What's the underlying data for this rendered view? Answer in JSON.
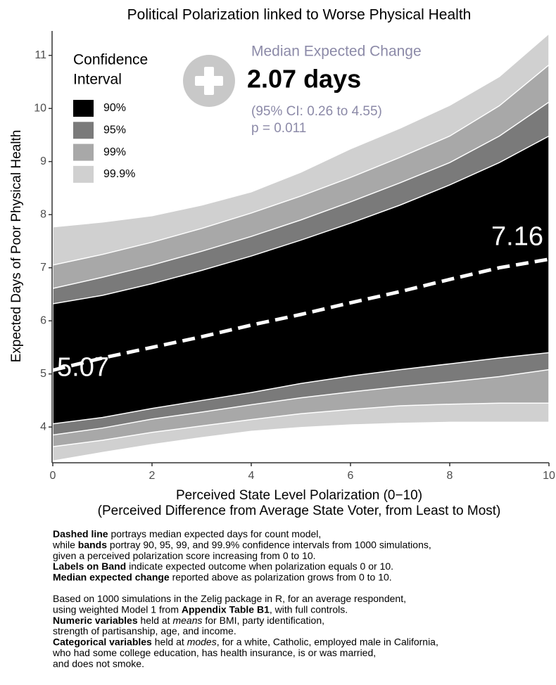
{
  "chart_data": {
    "type": "band",
    "title": "Political Polarization linked to Worse Physical Health",
    "x_label": "Perceived State Level Polarization (0−10)",
    "x_sublabel": "(Perceived Difference from Average State Voter, from Least to Most)",
    "y_label": "Expected Days of Poor Physical Health",
    "x": [
      0,
      1,
      2,
      3,
      4,
      5,
      6,
      7,
      8,
      9,
      10
    ],
    "xlim": [
      0,
      10
    ],
    "xticks": [
      0,
      2,
      4,
      6,
      8,
      10
    ],
    "ylim": [
      3.34,
      11.46
    ],
    "yticks": [
      4,
      5,
      6,
      7,
      8,
      9,
      10,
      11
    ],
    "legend_title": [
      "Confidence",
      "Interval"
    ],
    "legend_position": "upper left",
    "bands": [
      {
        "name": "99.9%",
        "color": "#d0d0d0",
        "upper": [
          7.77,
          7.86,
          7.98,
          8.18,
          8.43,
          8.8,
          9.24,
          9.63,
          10.06,
          10.6,
          11.41
        ],
        "lower": [
          3.36,
          3.52,
          3.67,
          3.8,
          3.92,
          3.99,
          4.04,
          4.07,
          4.09,
          4.09,
          4.09
        ]
      },
      {
        "name": "99%",
        "color": "#a8a8a8",
        "upper": [
          7.05,
          7.25,
          7.48,
          7.74,
          8.03,
          8.35,
          8.7,
          9.08,
          9.48,
          10.05,
          10.82
        ],
        "lower": [
          3.63,
          3.75,
          3.9,
          4.02,
          4.14,
          4.25,
          4.33,
          4.4,
          4.43,
          4.45,
          4.45
        ]
      },
      {
        "name": "95%",
        "color": "#7a7a7a",
        "upper": [
          6.61,
          6.82,
          7.05,
          7.31,
          7.59,
          7.9,
          8.24,
          8.6,
          8.98,
          9.48,
          10.12
        ],
        "lower": [
          3.85,
          3.98,
          4.15,
          4.28,
          4.42,
          4.55,
          4.66,
          4.76,
          4.85,
          4.95,
          5.08
        ]
      },
      {
        "name": "90%",
        "color": "#000000",
        "upper": [
          6.32,
          6.48,
          6.7,
          6.95,
          7.22,
          7.52,
          7.84,
          8.18,
          8.56,
          8.98,
          9.48
        ],
        "lower": [
          4.06,
          4.18,
          4.35,
          4.5,
          4.65,
          4.82,
          4.96,
          5.08,
          5.19,
          5.3,
          5.4
        ]
      }
    ],
    "median": {
      "color": "#ffffff",
      "values": [
        5.07,
        5.3,
        5.5,
        5.7,
        5.92,
        6.12,
        6.34,
        6.55,
        6.78,
        7.0,
        7.16
      ]
    },
    "annotations": {
      "heading": "Median Expected Change",
      "change": "2.07 days",
      "ci": "(95% CI: 0.26 to 4.55)",
      "p": "p = 0.011"
    },
    "notes": [
      [
        [
          {
            "text": "Dashed line",
            "style": "bold"
          },
          " portrays median expected days for count model,"
        ],
        [
          "while ",
          {
            "text": "bands",
            "style": "bold"
          },
          " portray 90, 95, 99, and 99.9% confidence intervals from 1000 simulations,"
        ],
        [
          "given a perceived polarization score increasing from 0 to 10."
        ],
        [
          {
            "text": "Labels on Band",
            "style": "bold"
          },
          " indicate expected outcome when polarization equals 0 or 10."
        ],
        [
          {
            "text": "Median expected change",
            "style": "bold"
          },
          " reported above as polarization grows from 0 to 10."
        ]
      ],
      [
        [
          "Based on 1000 simulations in the Zelig package in R, for an average respondent,"
        ],
        [
          "using weighted Model 1 from ",
          {
            "text": "Appendix Table B1",
            "style": "bold"
          },
          ", with full controls."
        ],
        [
          {
            "text": "Numeric variables",
            "style": "bold"
          },
          " held at ",
          {
            "text": "means",
            "style": "italic"
          },
          " for BMI, party identification,"
        ],
        [
          "strength of partisanship, age, and income."
        ],
        [
          {
            "text": "Categorical variables",
            "style": "bold"
          },
          " held at ",
          {
            "text": "modes",
            "style": "italic"
          },
          ", for a white, Catholic, employed male in California,"
        ],
        [
          "who had some college education, has health insurance, is or was married,"
        ],
        [
          "and does not smoke."
        ]
      ]
    ]
  }
}
